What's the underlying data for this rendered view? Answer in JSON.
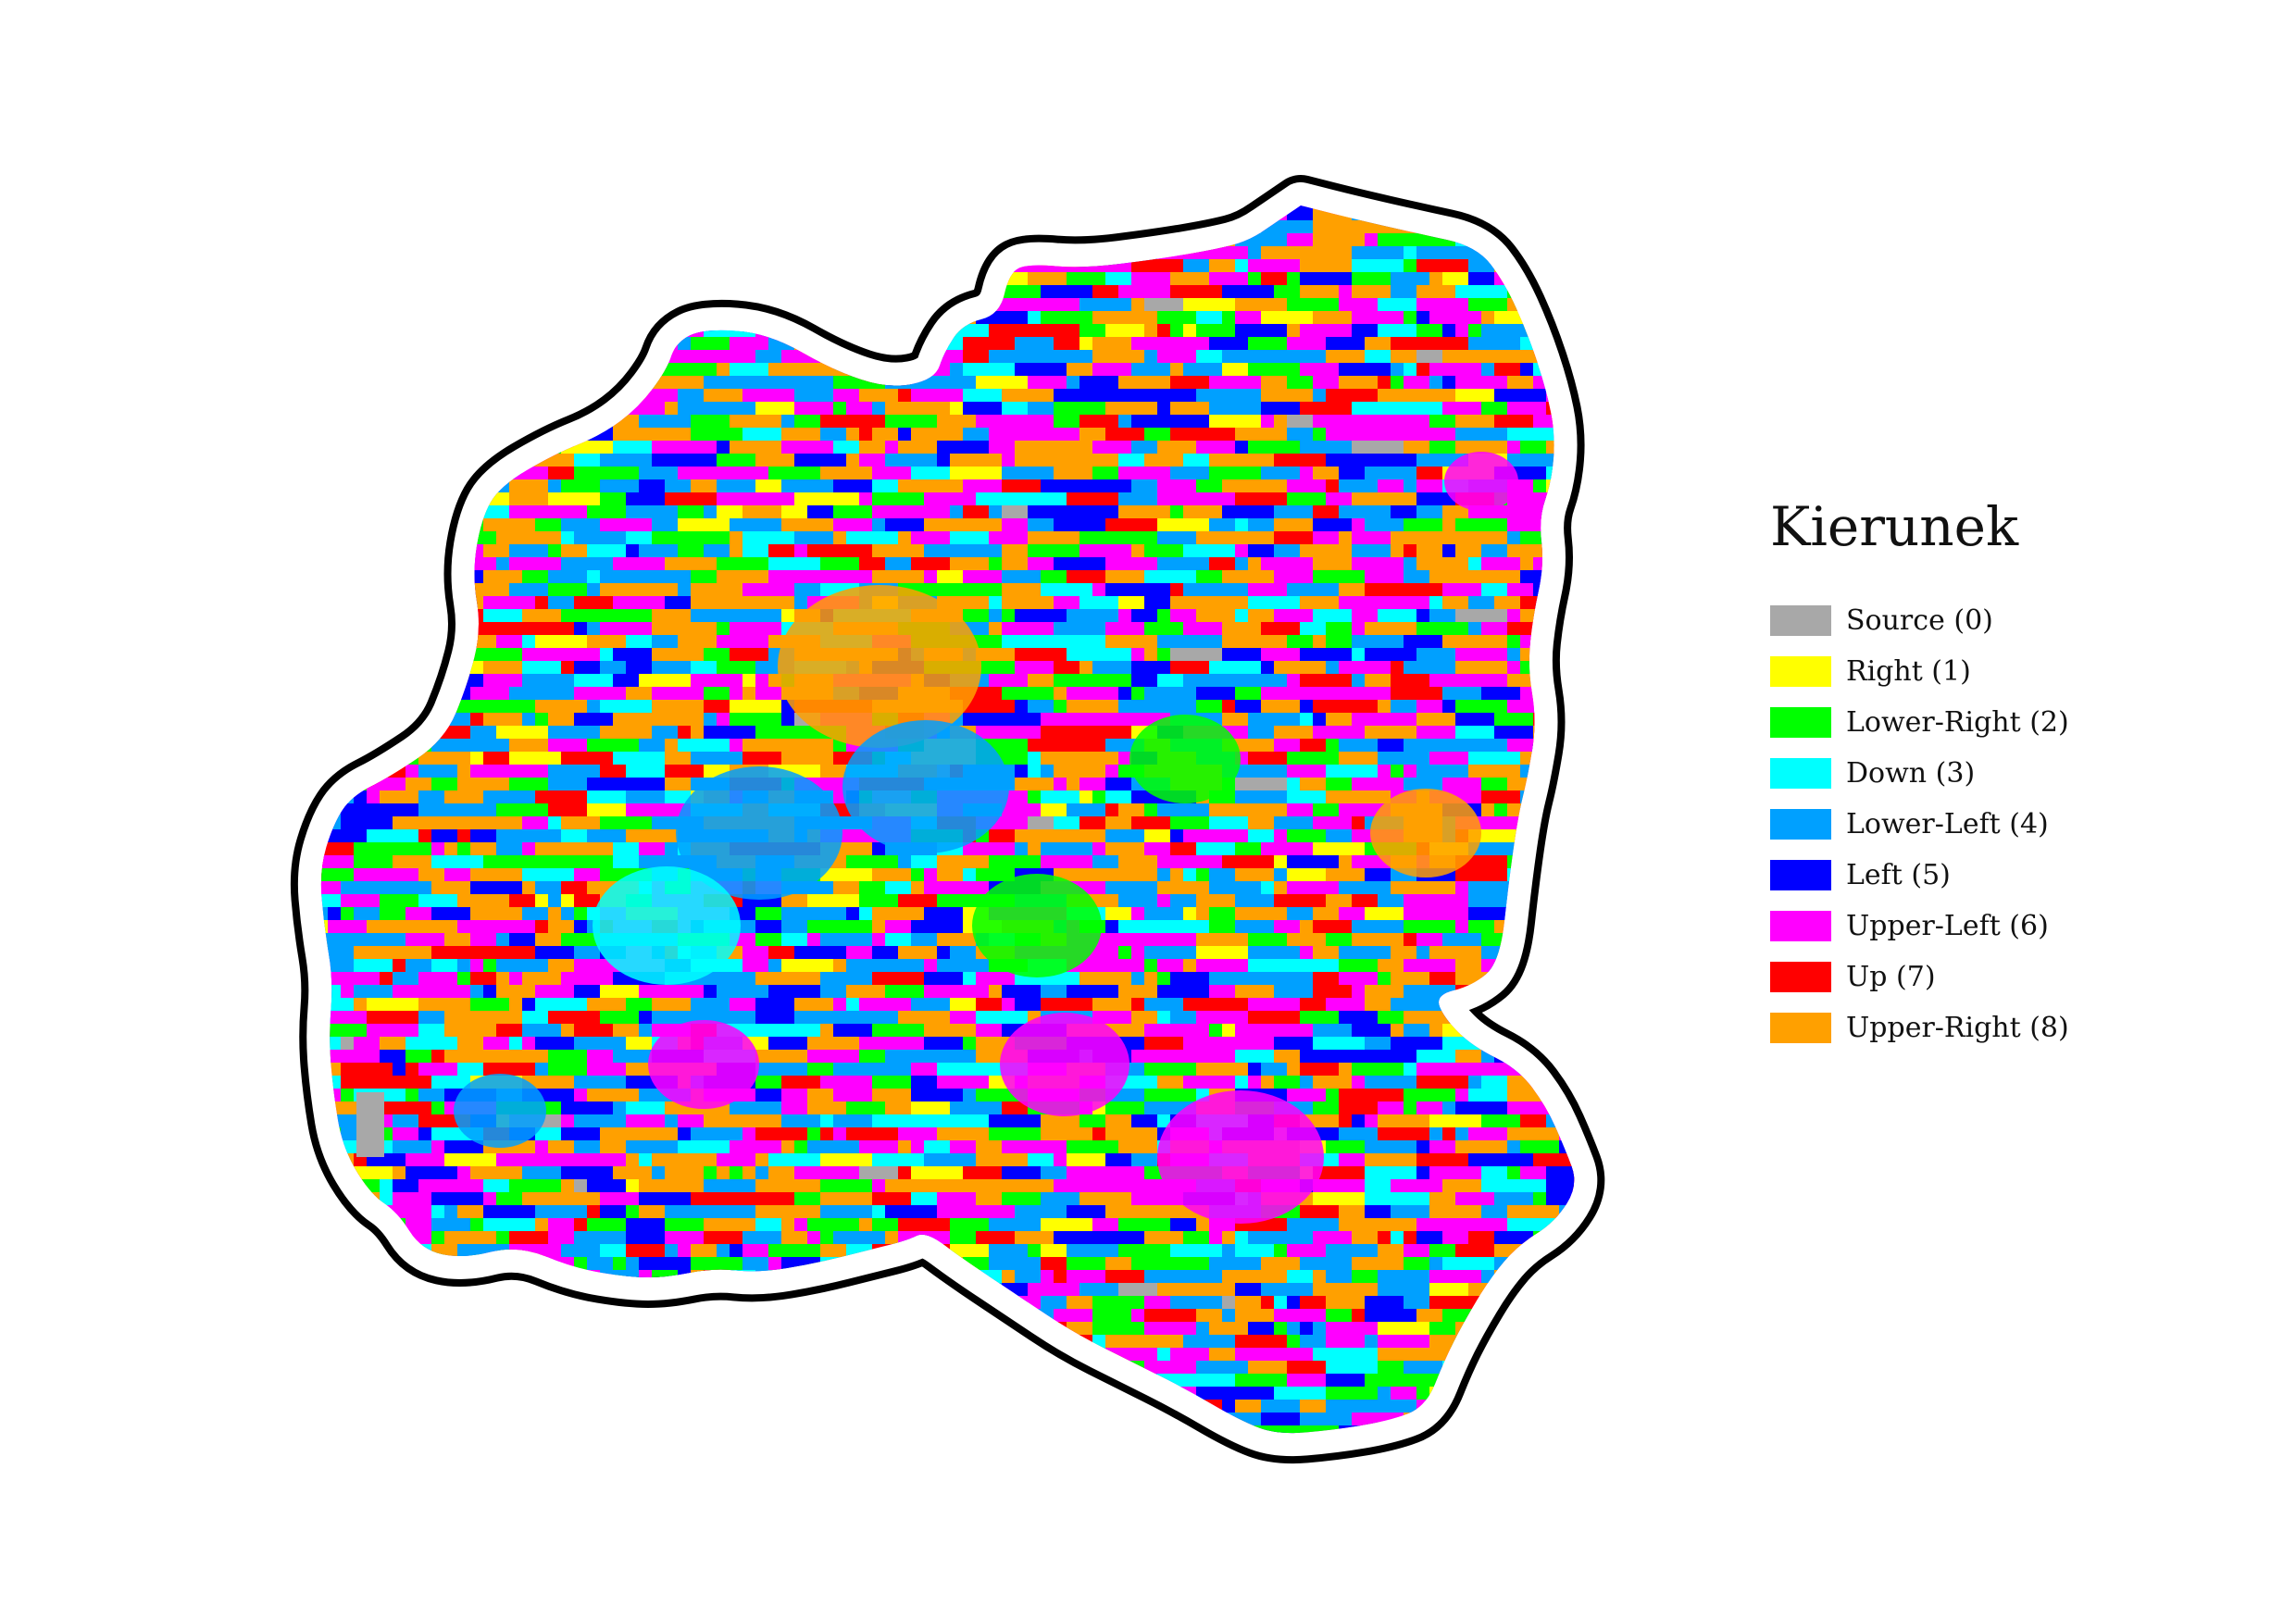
{
  "legend": {
    "title": "Kierunek",
    "items": [
      {
        "label": "Source (0)",
        "color": "#a8a8a8"
      },
      {
        "label": "Right (1)",
        "color": "#ffff00"
      },
      {
        "label": "Lower-Right (2)",
        "color": "#00ff00"
      },
      {
        "label": "Down (3)",
        "color": "#00ffff"
      },
      {
        "label": "Lower-Left (4)",
        "color": "#00a0ff"
      },
      {
        "label": "Left (5)",
        "color": "#0000ff"
      },
      {
        "label": "Upper-Left (6)",
        "color": "#ff00ff"
      },
      {
        "label": "Up (7)",
        "color": "#ff0000"
      },
      {
        "label": "Upper-Right (8)",
        "color": "#ffa000"
      }
    ]
  },
  "map": {
    "outline_color": "#000000",
    "halo_color": "#ffffff"
  }
}
